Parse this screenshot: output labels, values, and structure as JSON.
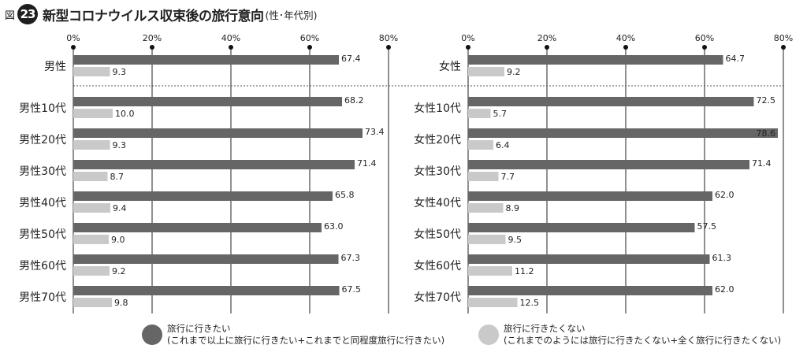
{
  "header": {
    "fig_label": "図",
    "fig_number": "23",
    "title": "新型コロナウイルス収束後の旅行意向",
    "subtitle": "(性･年代別)"
  },
  "colors": {
    "dark": "#666666",
    "light": "#c9c9c9",
    "grid": "#222222"
  },
  "legend": [
    {
      "name": "旅行に行きたい",
      "note": "(これまで以上に旅行に行きたい+これまでと同程度旅行に行きたい)",
      "color": "#666666"
    },
    {
      "name": "旅行に行きたくない",
      "note": "(これまでのようには旅行に行きたくない+全く旅行に行きたくない)",
      "color": "#c9c9c9"
    }
  ],
  "chart_data": [
    {
      "type": "bar",
      "orientation": "horizontal",
      "title": "",
      "xlim": [
        0,
        80
      ],
      "ticks": [
        "0%",
        "20%",
        "40%",
        "60%",
        "80%"
      ],
      "grid": true,
      "categories": [
        "男性",
        "男性10代",
        "男性20代",
        "男性30代",
        "男性40代",
        "男性50代",
        "男性60代",
        "男性70代"
      ],
      "series": [
        {
          "name": "旅行に行きたい",
          "values": [
            67.4,
            68.2,
            73.4,
            71.4,
            65.8,
            63.0,
            67.3,
            67.5
          ],
          "labels": [
            "67.4",
            "68.2",
            "73.4",
            "71.4",
            "65.8",
            "63.0",
            "67.3",
            "67.5"
          ]
        },
        {
          "name": "旅行に行きたくない",
          "values": [
            9.3,
            10.0,
            9.3,
            8.7,
            9.4,
            9.0,
            9.2,
            9.8
          ],
          "labels": [
            "9.3",
            "10.0",
            "9.3",
            "8.7",
            "9.4",
            "9.0",
            "9.2",
            "9.8"
          ]
        }
      ]
    },
    {
      "type": "bar",
      "orientation": "horizontal",
      "title": "",
      "xlim": [
        0,
        80
      ],
      "ticks": [
        "0%",
        "20%",
        "40%",
        "60%",
        "80%"
      ],
      "grid": true,
      "categories": [
        "女性",
        "女性10代",
        "女性20代",
        "女性30代",
        "女性40代",
        "女性50代",
        "女性60代",
        "女性70代"
      ],
      "series": [
        {
          "name": "旅行に行きたい",
          "values": [
            64.7,
            72.5,
            78.6,
            71.4,
            62.0,
            57.5,
            61.3,
            62.0
          ],
          "labels": [
            "64.7",
            "72.5",
            "78.6",
            "71.4",
            "62.0",
            "57.5",
            "61.3",
            "62.0"
          ]
        },
        {
          "name": "旅行に行きたくない",
          "values": [
            9.2,
            5.7,
            6.4,
            7.7,
            8.9,
            9.5,
            11.2,
            12.5
          ],
          "labels": [
            "9.2",
            "5.7",
            "6.4",
            "7.7",
            "8.9",
            "9.5",
            "11.2",
            "12.5"
          ]
        }
      ]
    }
  ]
}
